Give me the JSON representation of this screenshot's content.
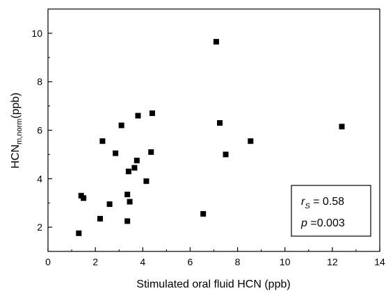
{
  "chart_data": {
    "type": "scatter",
    "xlabel": "Stimulated oral fluid HCN (ppb)",
    "ylabel_main": "HCN",
    "ylabel_sub": "m,norm",
    "ylabel_unit": "(ppb)",
    "xlim": [
      0,
      14
    ],
    "ylim": [
      1,
      11
    ],
    "x_ticks": [
      0,
      2,
      4,
      6,
      8,
      10,
      12,
      14
    ],
    "y_ticks": [
      2,
      4,
      6,
      8,
      10
    ],
    "grid": false,
    "marker_color": "#000000",
    "points": [
      {
        "x": 1.3,
        "y": 1.75
      },
      {
        "x": 1.4,
        "y": 3.3
      },
      {
        "x": 1.5,
        "y": 3.2
      },
      {
        "x": 2.2,
        "y": 2.35
      },
      {
        "x": 2.3,
        "y": 5.55
      },
      {
        "x": 2.6,
        "y": 2.95
      },
      {
        "x": 2.85,
        "y": 5.05
      },
      {
        "x": 3.1,
        "y": 6.2
      },
      {
        "x": 3.35,
        "y": 3.35
      },
      {
        "x": 3.35,
        "y": 2.25
      },
      {
        "x": 3.4,
        "y": 4.3
      },
      {
        "x": 3.45,
        "y": 3.05
      },
      {
        "x": 3.65,
        "y": 4.45
      },
      {
        "x": 3.75,
        "y": 4.75
      },
      {
        "x": 3.8,
        "y": 6.6
      },
      {
        "x": 4.15,
        "y": 3.9
      },
      {
        "x": 4.35,
        "y": 5.1
      },
      {
        "x": 4.4,
        "y": 6.7
      },
      {
        "x": 6.55,
        "y": 2.55
      },
      {
        "x": 7.1,
        "y": 9.65
      },
      {
        "x": 7.25,
        "y": 6.3
      },
      {
        "x": 7.5,
        "y": 5.0
      },
      {
        "x": 8.55,
        "y": 5.55
      },
      {
        "x": 12.4,
        "y": 6.15
      }
    ],
    "annotation": {
      "r_symbol": "r",
      "r_sub": "S",
      "r_value": " = 0.58",
      "p_symbol": "p",
      "p_value": " =0.003"
    }
  }
}
